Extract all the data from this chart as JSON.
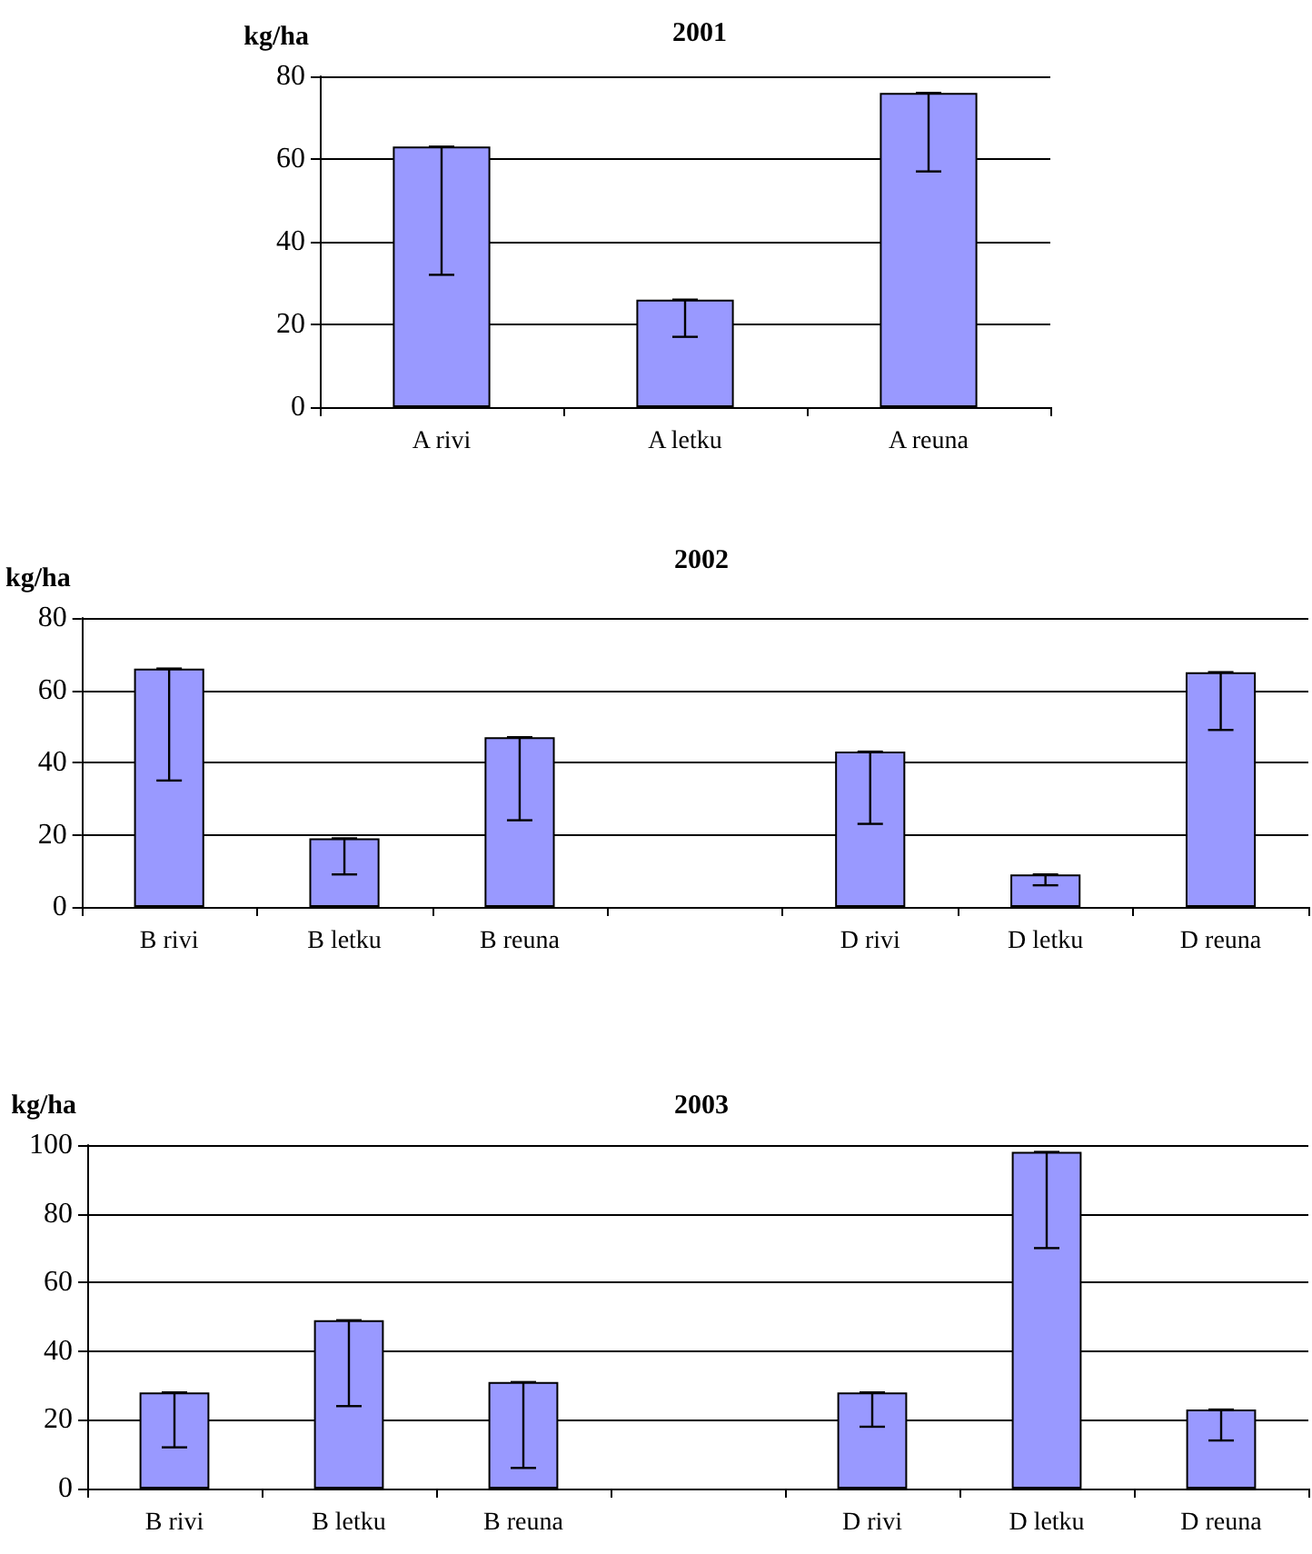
{
  "chart_data": [
    {
      "type": "bar",
      "title": "2001",
      "ylabel": "kg/ha",
      "categories": [
        "A rivi",
        "A letku",
        "A reuna"
      ],
      "values": [
        63,
        26,
        76
      ],
      "color": "#9999ff",
      "errors": [
        [
          32,
          63
        ],
        [
          17,
          26
        ],
        [
          57,
          76
        ]
      ],
      "ylim": [
        0,
        80
      ],
      "yticks": [
        0,
        20,
        40,
        60,
        80
      ],
      "grid": "y"
    },
    {
      "type": "bar",
      "title": "2002",
      "ylabel": "kg/ha",
      "categories": [
        "B rivi",
        "B letku",
        "B reuna",
        null,
        "D rivi",
        "D letku",
        "D reuna"
      ],
      "values": [
        66,
        19,
        47,
        null,
        43,
        9,
        65
      ],
      "color": "#9999ff",
      "errors": [
        [
          35,
          66
        ],
        [
          9,
          19
        ],
        [
          24,
          47
        ],
        null,
        [
          23,
          43
        ],
        [
          6,
          9
        ],
        [
          49,
          65
        ]
      ],
      "ylim": [
        0,
        80
      ],
      "yticks": [
        0,
        20,
        40,
        60,
        80
      ],
      "grid": "y"
    },
    {
      "type": "bar",
      "title": "2003",
      "ylabel": "kg/ha",
      "categories": [
        "B rivi",
        "B letku",
        "B reuna",
        null,
        "D rivi",
        "D letku",
        "D reuna"
      ],
      "values": [
        28,
        49,
        31,
        null,
        28,
        98,
        23
      ],
      "color": "#9999ff",
      "errors": [
        [
          12,
          28
        ],
        [
          24,
          49
        ],
        [
          6,
          31
        ],
        null,
        [
          18,
          28
        ],
        [
          70,
          98
        ],
        [
          14,
          23
        ]
      ],
      "ylim": [
        0,
        100
      ],
      "yticks": [
        0,
        20,
        40,
        60,
        80,
        100
      ],
      "grid": "y"
    }
  ]
}
